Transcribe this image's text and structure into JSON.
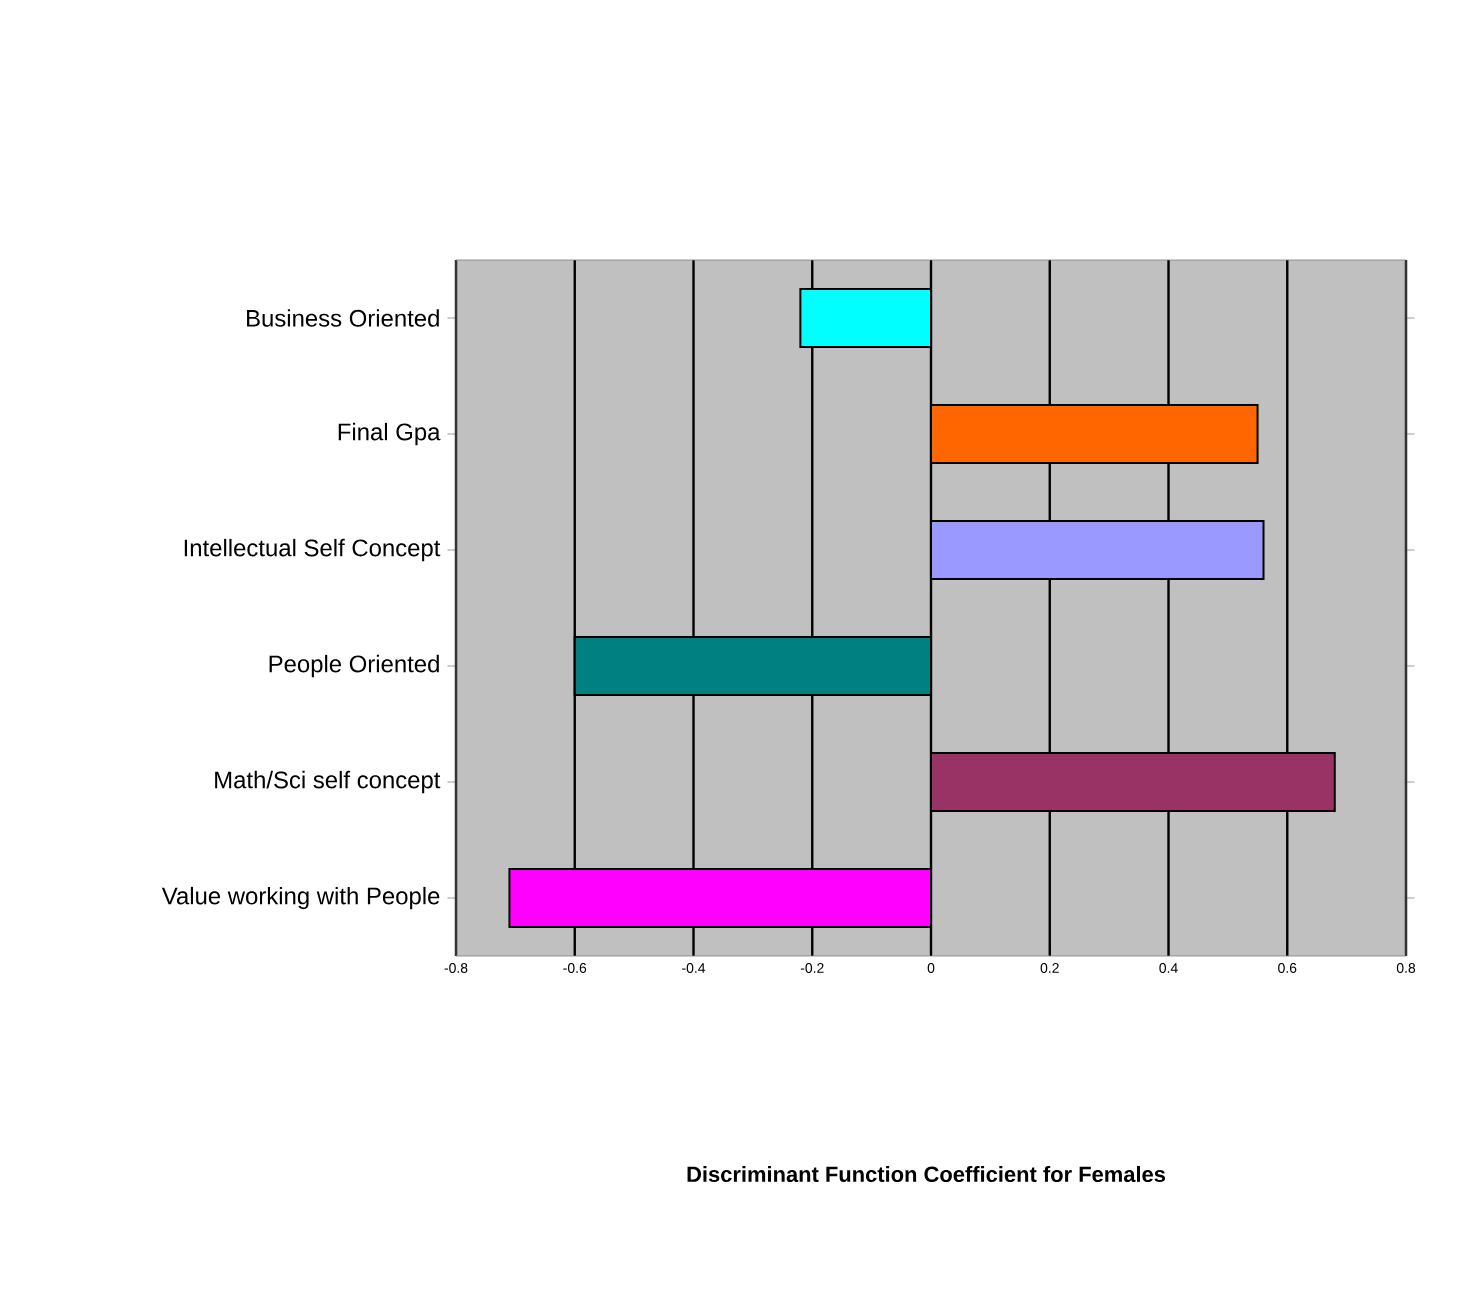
{
  "chart_data": {
    "type": "bar",
    "orientation": "horizontal",
    "annotations": [
      "Discriminant Function Coefficient for Females"
    ],
    "categories": [
      "Business Oriented",
      "Final Gpa",
      "Intellectual Self Concept",
      "People Oriented",
      "Math/Sci self concept",
      "Value working with People"
    ],
    "values": [
      -0.22,
      0.55,
      0.56,
      -0.6,
      0.68,
      -0.71
    ],
    "colors": [
      "#00ffff",
      "#ff6600",
      "#9999ff",
      "#008080",
      "#993366",
      "#ff00ff"
    ],
    "xlim": [
      -0.8,
      0.8
    ],
    "xticks": [
      -0.8,
      -0.6,
      -0.4,
      -0.2,
      0,
      0.2,
      0.4,
      0.6,
      0.8
    ],
    "grid": "x"
  }
}
